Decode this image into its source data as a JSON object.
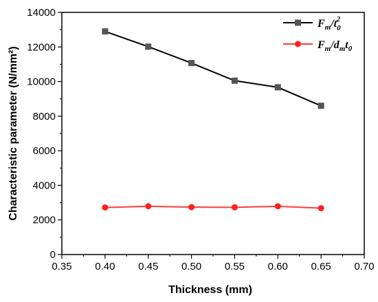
{
  "chart_data": {
    "type": "line",
    "xlabel": "Thickness (mm)",
    "ylabel": "Characteristic parameter (N/mm²)",
    "xlim": [
      0.35,
      0.7
    ],
    "ylim": [
      0,
      14000
    ],
    "xticks": [
      "0.35",
      "0.40",
      "0.45",
      "0.50",
      "0.55",
      "0.60",
      "0.65",
      "0.70"
    ],
    "yticks": [
      "0",
      "2000",
      "4000",
      "6000",
      "8000",
      "10000",
      "12000",
      "14000"
    ],
    "x": [
      0.4,
      0.45,
      0.5,
      0.55,
      0.6,
      0.65
    ],
    "series": [
      {
        "name": "Fm/t0²",
        "color": "#000000",
        "marker_color": "#555555",
        "marker": "square",
        "values": [
          12900,
          12020,
          11070,
          10050,
          9670,
          8600
        ]
      },
      {
        "name": "Fm/dmt0",
        "color": "#ff3b3b",
        "marker_color": "#ff2020",
        "marker": "circle",
        "values": [
          2720,
          2790,
          2740,
          2730,
          2790,
          2680
        ]
      }
    ],
    "grid": false,
    "legend_position": "top-right"
  }
}
